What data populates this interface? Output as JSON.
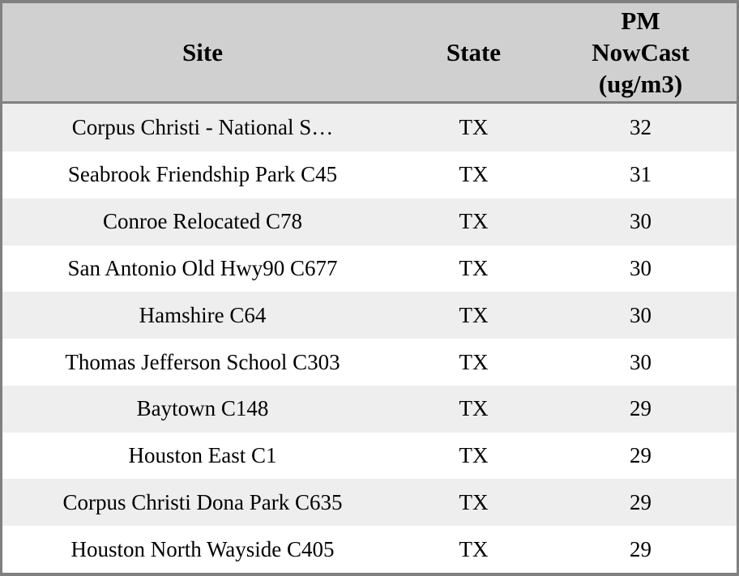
{
  "colors": {
    "frame_border": "#808080",
    "header_bg": "#d0d0d0",
    "header_separator": "#808080",
    "stripe_row_bg": "#eeeeee",
    "plain_row_bg": "#ffffff",
    "text": "#000000"
  },
  "chart_data": {
    "type": "table",
    "columns": [
      "Site",
      "State",
      "PM NowCast (ug/m3)"
    ],
    "rows": [
      [
        "Corpus Christi - National S…",
        "TX",
        32
      ],
      [
        "Seabrook Friendship Park C45",
        "TX",
        31
      ],
      [
        "Conroe Relocated C78",
        "TX",
        30
      ],
      [
        "San Antonio Old Hwy90 C677",
        "TX",
        30
      ],
      [
        "Hamshire C64",
        "TX",
        30
      ],
      [
        "Thomas Jefferson School C303",
        "TX",
        30
      ],
      [
        "Baytown C148",
        "TX",
        29
      ],
      [
        "Houston East C1",
        "TX",
        29
      ],
      [
        "Corpus Christi Dona Park C635",
        "TX",
        29
      ],
      [
        "Houston North Wayside C405",
        "TX",
        29
      ]
    ]
  }
}
